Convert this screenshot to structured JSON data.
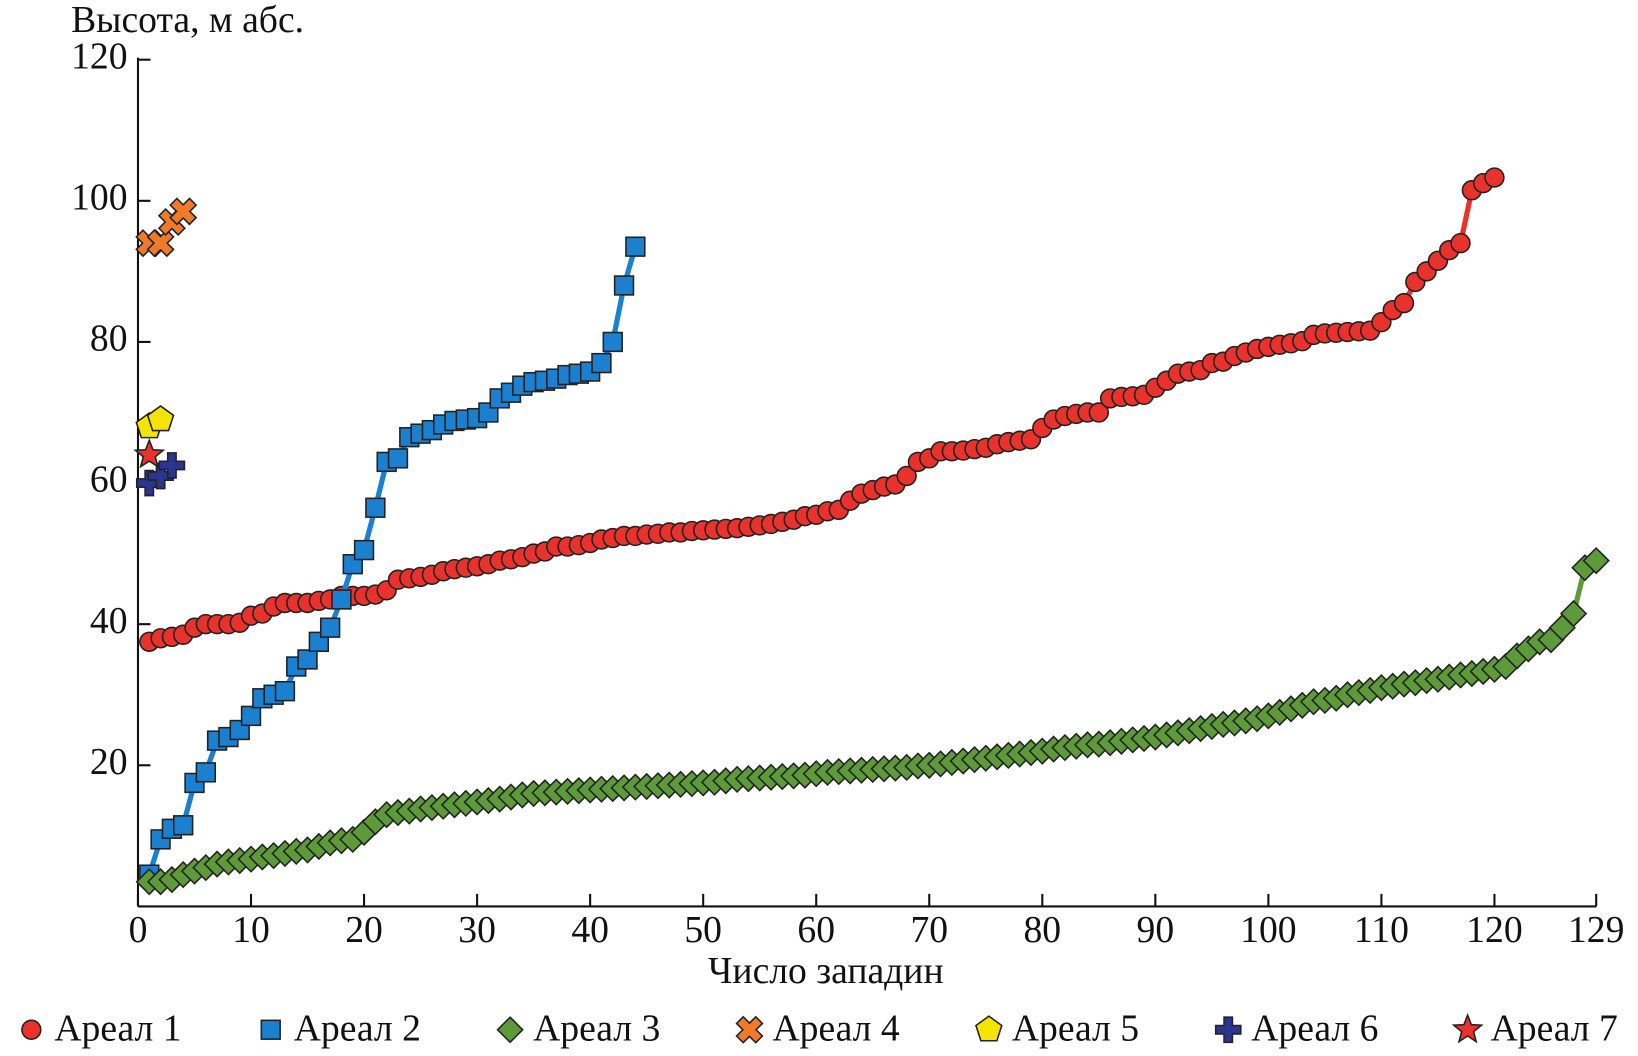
{
  "chart_data": {
    "type": "line",
    "y_label": "Высота, м абс.",
    "x_label": "Число западин",
    "xlim": [
      0,
      129
    ],
    "ylim": [
      0,
      120
    ],
    "xticks": [
      0,
      10,
      20,
      30,
      40,
      50,
      60,
      70,
      80,
      90,
      100,
      110,
      120,
      129
    ],
    "yticks": [
      20,
      40,
      60,
      80,
      100,
      120
    ],
    "legend": "bottom",
    "series": [
      {
        "name": "Ареал 1",
        "color": "#e8322b",
        "marker": "circle",
        "line": true,
        "x": [
          1,
          2,
          3,
          4,
          5,
          6,
          7,
          8,
          9,
          10,
          11,
          12,
          13,
          14,
          15,
          16,
          17,
          18,
          19,
          20,
          21,
          22,
          23,
          24,
          25,
          26,
          27,
          28,
          29,
          30,
          31,
          32,
          33,
          34,
          35,
          36,
          37,
          38,
          39,
          40,
          41,
          42,
          43,
          44,
          45,
          46,
          47,
          48,
          49,
          50,
          51,
          52,
          53,
          54,
          55,
          56,
          57,
          58,
          59,
          60,
          61,
          62,
          63,
          64,
          65,
          66,
          67,
          68,
          69,
          70,
          71,
          72,
          73,
          74,
          75,
          76,
          77,
          78,
          79,
          80,
          81,
          82,
          83,
          84,
          85,
          86,
          87,
          88,
          89,
          90,
          91,
          92,
          93,
          94,
          95,
          96,
          97,
          98,
          99,
          100,
          101,
          102,
          103,
          104,
          105,
          106,
          107,
          108,
          109,
          110,
          111,
          112,
          113,
          114,
          115,
          116,
          117,
          118,
          119,
          120
        ],
        "values": [
          37.5,
          38,
          38.2,
          38.5,
          39.5,
          40,
          40,
          40,
          40.2,
          41.2,
          41.5,
          42.5,
          43,
          43,
          43,
          43.3,
          43.5,
          44,
          44,
          44,
          44.2,
          44.8,
          46.3,
          46.5,
          46.7,
          47,
          47.5,
          47.8,
          48,
          48.2,
          48.5,
          49,
          49.2,
          49.5,
          50,
          50.3,
          51,
          51,
          51.2,
          51.5,
          52,
          52.2,
          52.5,
          52.5,
          52.7,
          52.8,
          53,
          53,
          53.2,
          53.3,
          53.4,
          53.5,
          53.6,
          53.8,
          54,
          54.2,
          54.5,
          54.8,
          55.3,
          55.5,
          56,
          56.2,
          57.5,
          58.5,
          59,
          59.5,
          59.8,
          61,
          63,
          63.5,
          64.5,
          64.5,
          64.6,
          64.8,
          65,
          65.5,
          65.8,
          66,
          66.2,
          67.8,
          69,
          69.5,
          69.8,
          70,
          70,
          72,
          72.2,
          72.3,
          72.5,
          73.5,
          74.5,
          75.5,
          75.8,
          76,
          77,
          77.2,
          78,
          78.5,
          79,
          79.3,
          79.6,
          79.8,
          80.1,
          81,
          81.2,
          81.3,
          81.4,
          81.5,
          81.6,
          82.8,
          84.5,
          85.5,
          88.5,
          90,
          91.5,
          93,
          94,
          101.5,
          102.5,
          103.3
        ]
      },
      {
        "name": "Ареал 2",
        "color": "#1b80cf",
        "marker": "square",
        "line": true,
        "x": [
          1,
          2,
          3,
          4,
          5,
          6,
          7,
          8,
          9,
          10,
          11,
          12,
          13,
          14,
          15,
          16,
          17,
          18,
          19,
          20,
          21,
          22,
          23,
          24,
          25,
          26,
          27,
          28,
          29,
          30,
          31,
          32,
          33,
          34,
          35,
          36,
          37,
          38,
          39,
          40,
          41,
          42,
          43,
          44
        ],
        "values": [
          4.5,
          9.5,
          11,
          11.5,
          17.5,
          19,
          23.5,
          24,
          25,
          27,
          29.5,
          30,
          30.5,
          34,
          35,
          37.5,
          39.5,
          43.5,
          48.5,
          50.5,
          56.5,
          63,
          63.5,
          66.5,
          67,
          67.5,
          68.3,
          68.8,
          69,
          69.2,
          70,
          72,
          72.8,
          73.8,
          74.3,
          74.5,
          74.8,
          75.3,
          75.5,
          75.8,
          77,
          80,
          88,
          93.5
        ]
      },
      {
        "name": "Ареал 3",
        "color": "#5d9a3a",
        "marker": "diamond",
        "line": true,
        "x": [
          1,
          2,
          3,
          4,
          5,
          6,
          7,
          8,
          9,
          10,
          11,
          12,
          13,
          14,
          15,
          16,
          17,
          18,
          19,
          20,
          21,
          22,
          23,
          24,
          25,
          26,
          27,
          28,
          29,
          30,
          31,
          32,
          33,
          34,
          35,
          36,
          37,
          38,
          39,
          40,
          41,
          42,
          43,
          44,
          45,
          46,
          47,
          48,
          49,
          50,
          51,
          52,
          53,
          54,
          55,
          56,
          57,
          58,
          59,
          60,
          61,
          62,
          63,
          64,
          65,
          66,
          67,
          68,
          69,
          70,
          71,
          72,
          73,
          74,
          75,
          76,
          77,
          78,
          79,
          80,
          81,
          82,
          83,
          84,
          85,
          86,
          87,
          88,
          89,
          90,
          91,
          92,
          93,
          94,
          95,
          96,
          97,
          98,
          99,
          100,
          101,
          102,
          103,
          104,
          105,
          106,
          107,
          108,
          109,
          110,
          111,
          112,
          113,
          114,
          115,
          116,
          117,
          118,
          119,
          120,
          121,
          122,
          123,
          124,
          125,
          126,
          127,
          128,
          129
        ],
        "values": [
          3.5,
          3.5,
          3.8,
          4.5,
          5,
          5.5,
          6,
          6.3,
          6.5,
          6.7,
          7,
          7.2,
          7.5,
          7.8,
          8,
          8.5,
          9,
          9.3,
          9.5,
          10.5,
          12,
          13,
          13.3,
          13.5,
          13.8,
          14,
          14.2,
          14.4,
          14.6,
          14.8,
          15,
          15.2,
          15.5,
          15.8,
          16,
          16.1,
          16.2,
          16.3,
          16.4,
          16.5,
          16.6,
          16.7,
          16.8,
          16.9,
          17,
          17.1,
          17.2,
          17.3,
          17.4,
          17.5,
          17.6,
          17.8,
          18,
          18.1,
          18.2,
          18.3,
          18.4,
          18.5,
          18.6,
          18.8,
          19,
          19.1,
          19.2,
          19.3,
          19.4,
          19.5,
          19.6,
          19.7,
          19.9,
          20,
          20.2,
          20.4,
          20.6,
          20.8,
          21,
          21.2,
          21.4,
          21.6,
          21.8,
          22,
          22.3,
          22.5,
          22.7,
          22.9,
          23,
          23.2,
          23.4,
          23.6,
          23.8,
          24,
          24.3,
          24.6,
          24.9,
          25.2,
          25.5,
          25.8,
          26,
          26.3,
          26.6,
          27,
          27.5,
          28,
          28.5,
          29,
          29.2,
          29.5,
          30,
          30.3,
          30.6,
          31,
          31.2,
          31.5,
          31.7,
          32,
          32.2,
          32.5,
          32.8,
          33,
          33.3,
          33.6,
          34,
          35.5,
          36.5,
          37.5,
          37.8,
          39.5,
          41.5,
          48,
          49
        ]
      },
      {
        "name": "Ареал 4",
        "color": "#f07a2a",
        "marker": "x",
        "line": false,
        "x": [
          1,
          2,
          3,
          4
        ],
        "values": [
          94,
          94,
          97,
          98.5
        ]
      },
      {
        "name": "Ареал 5",
        "color": "#f5e400",
        "marker": "pentagon",
        "line": false,
        "x": [
          1,
          2
        ],
        "values": [
          68,
          69
        ]
      },
      {
        "name": "Ареал 6",
        "color": "#2a3590",
        "marker": "plus",
        "line": false,
        "x": [
          1,
          2,
          3
        ],
        "values": [
          60,
          61,
          62.5
        ]
      },
      {
        "name": "Ареал 7",
        "color": "#e8322b",
        "marker": "star",
        "line": false,
        "x": [
          1
        ],
        "values": [
          64
        ]
      }
    ]
  }
}
